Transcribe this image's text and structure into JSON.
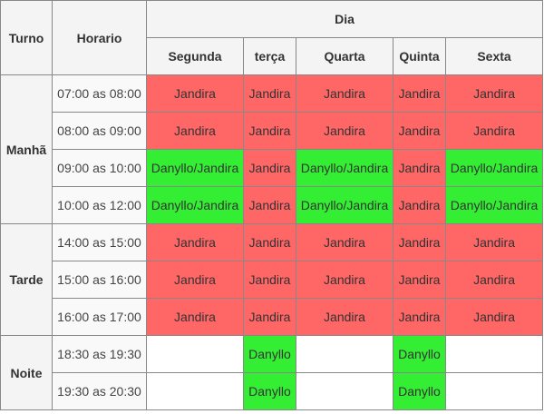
{
  "header": {
    "turno": "Turno",
    "horario": "Horario",
    "dia": "Dia",
    "days": [
      "Segunda",
      "terça",
      "Quarta",
      "Quinta",
      "Sexta"
    ]
  },
  "colors": {
    "occupied": "#ff6666",
    "shared": "#33ee33",
    "free": "#ffffff"
  },
  "shifts": [
    {
      "name": "Manhã",
      "rows": [
        {
          "time": "07:00 as 08:00",
          "cells": [
            "Jandira",
            "Jandira",
            "Jandira",
            "Jandira",
            "Jandira"
          ],
          "colors": [
            "occupied",
            "occupied",
            "occupied",
            "occupied",
            "occupied"
          ]
        },
        {
          "time": "08:00 as 09:00",
          "cells": [
            "Jandira",
            "Jandira",
            "Jandira",
            "Jandira",
            "Jandira"
          ],
          "colors": [
            "occupied",
            "occupied",
            "occupied",
            "occupied",
            "occupied"
          ]
        },
        {
          "time": "09:00 as 10:00",
          "cells": [
            "Danyllo/Jandira",
            "Jandira",
            "Danyllo/Jandira",
            "Jandira",
            "Danyllo/Jandira"
          ],
          "colors": [
            "shared",
            "occupied",
            "shared",
            "occupied",
            "shared"
          ]
        },
        {
          "time": "10:00 as 12:00",
          "cells": [
            "Danyllo/Jandira",
            "Jandira",
            "Danyllo/Jandira",
            "Jandira",
            "Danyllo/Jandira"
          ],
          "colors": [
            "shared",
            "occupied",
            "shared",
            "occupied",
            "shared"
          ]
        }
      ]
    },
    {
      "name": "Tarde",
      "rows": [
        {
          "time": "14:00 as 15:00",
          "cells": [
            "Jandira",
            "Jandira",
            "Jandira",
            "Jandira",
            "Jandira"
          ],
          "colors": [
            "occupied",
            "occupied",
            "occupied",
            "occupied",
            "occupied"
          ]
        },
        {
          "time": "15:00 as 16:00",
          "cells": [
            "Jandira",
            "Jandira",
            "Jandira",
            "Jandira",
            "Jandira"
          ],
          "colors": [
            "occupied",
            "occupied",
            "occupied",
            "occupied",
            "occupied"
          ]
        },
        {
          "time": "16:00 as 17:00",
          "cells": [
            "Jandira",
            "Jandira",
            "Jandira",
            "Jandira",
            "Jandira"
          ],
          "colors": [
            "occupied",
            "occupied",
            "occupied",
            "occupied",
            "occupied"
          ]
        }
      ]
    },
    {
      "name": "Noite",
      "rows": [
        {
          "time": "18:30 as 19:30",
          "cells": [
            "",
            "Danyllo",
            "",
            "Danyllo",
            ""
          ],
          "colors": [
            "free",
            "shared",
            "free",
            "shared",
            "free"
          ]
        },
        {
          "time": "19:30 as 20:30",
          "cells": [
            "",
            "Danyllo",
            "",
            "Danyllo",
            ""
          ],
          "colors": [
            "free",
            "shared",
            "free",
            "shared",
            "free"
          ]
        }
      ]
    }
  ]
}
